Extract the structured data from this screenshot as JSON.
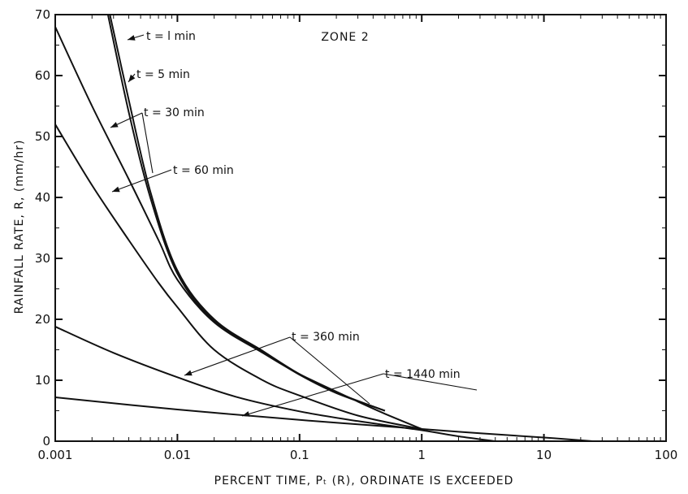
{
  "chart_data": {
    "type": "line",
    "title": "ZONE 2",
    "xlabel": "PERCENT TIME, Pₜ (R), ORDINATE IS EXCEEDED",
    "ylabel": "RAINFALL RATE, R, (mm/hr)",
    "xscale": "log",
    "xlim": [
      0.001,
      100
    ],
    "ylim": [
      0,
      70
    ],
    "xticks": [
      "0.001",
      "0.01",
      "0.1",
      "1",
      "10",
      "100"
    ],
    "yticks": [
      "0",
      "10",
      "20",
      "30",
      "40",
      "50",
      "60",
      "70"
    ],
    "grid": false,
    "legend": "none",
    "series": [
      {
        "name": "t = 1 min",
        "x": [
          0.0028,
          0.004,
          0.006,
          0.01,
          0.02,
          0.05,
          0.1,
          0.2,
          0.5
        ],
        "y": [
          70,
          56,
          41,
          28,
          20,
          14.8,
          11,
          8,
          5
        ]
      },
      {
        "name": "t = 5 min",
        "x": [
          0.0027,
          0.004,
          0.006,
          0.01,
          0.02,
          0.05,
          0.1,
          0.2,
          0.5
        ],
        "y": [
          70,
          54,
          40,
          27.5,
          19.7,
          14.6,
          10.9,
          7.9,
          5
        ]
      },
      {
        "name": "t = 30 min",
        "x": [
          0.001,
          0.002,
          0.004,
          0.007,
          0.01,
          0.02,
          0.05,
          0.1,
          0.3,
          0.5,
          1
        ],
        "y": [
          68,
          55,
          43,
          33,
          26.5,
          19.5,
          14.5,
          11,
          6.5,
          4.5,
          2
        ]
      },
      {
        "name": "t = 60 min",
        "x": [
          0.001,
          0.002,
          0.004,
          0.007,
          0.01,
          0.02,
          0.05,
          0.1,
          0.3,
          1
        ],
        "y": [
          52,
          42,
          33,
          26,
          22,
          15,
          10,
          7.5,
          4.2,
          2
        ]
      },
      {
        "name": "t = 360 min",
        "x": [
          0.001,
          0.003,
          0.01,
          0.03,
          0.1,
          0.3,
          1,
          2,
          4
        ],
        "y": [
          18.8,
          14.5,
          10.5,
          7.3,
          4.9,
          3.3,
          1.8,
          0.8,
          0
        ]
      },
      {
        "name": "t = 1440 min",
        "x": [
          0.001,
          0.01,
          0.1,
          1,
          3,
          10,
          25
        ],
        "y": [
          7.2,
          5.2,
          3.5,
          2,
          1.3,
          0.6,
          0
        ]
      }
    ],
    "annotations": [
      {
        "text": "t = l min",
        "series": 0
      },
      {
        "text": "t = 5 min",
        "series": 1
      },
      {
        "text": "t = 30 min",
        "series": 2
      },
      {
        "text": "t = 60 min",
        "series": 3
      },
      {
        "text": "t = 360 min",
        "series": 4
      },
      {
        "text": "t = 1440 min",
        "series": 5
      }
    ]
  }
}
